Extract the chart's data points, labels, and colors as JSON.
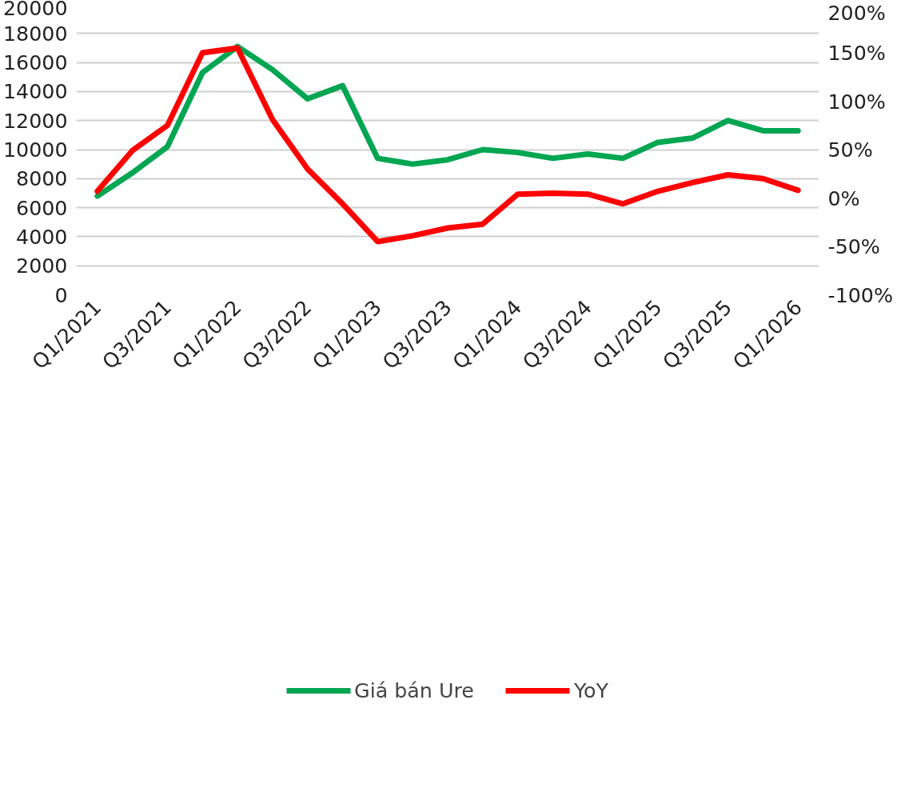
{
  "chart_data": {
    "type": "line",
    "categories": [
      "Q1/2021",
      null,
      "Q3/2021",
      null,
      "Q1/2022",
      null,
      "Q3/2022",
      null,
      "Q1/2023",
      null,
      "Q3/2023",
      null,
      "Q1/2024",
      null,
      "Q3/2024",
      null,
      "Q1/2025",
      null,
      "Q3/2025",
      null,
      "Q1/2026"
    ],
    "series": [
      {
        "name": "Giá bán Ure",
        "color": "#00a651",
        "values": [
          6800,
          8400,
          10200,
          15300,
          17100,
          15500,
          13500,
          14400,
          9400,
          9000,
          9300,
          10000,
          9800,
          9400,
          9700,
          9400,
          10500,
          10800,
          12000,
          11300,
          11300
        ]
      },
      {
        "name": "YoY",
        "color": "#ff0000",
        "axis": "y2",
        "values": [
          7,
          49,
          75,
          150,
          155,
          81,
          30,
          -6,
          -45,
          -39,
          -31,
          -27,
          4,
          5,
          4,
          -6,
          7,
          16,
          24,
          20,
          8
        ]
      }
    ],
    "ylim": [
      0,
      20000
    ],
    "yticks": [
      0,
      2000,
      4000,
      6000,
      8000,
      10000,
      12000,
      14000,
      16000,
      18000,
      20000
    ],
    "y2lim": [
      -100,
      200
    ],
    "y2ticks": [
      {
        "value": -100,
        "label": "-100%"
      },
      {
        "value": -50,
        "label": "-50%"
      },
      {
        "value": 0,
        "label": "0%"
      },
      {
        "value": 50,
        "label": "50%"
      },
      {
        "value": 100,
        "label": "100%"
      },
      {
        "value": 150,
        "label": "150%"
      },
      {
        "value": 200,
        "label": "200%"
      }
    ],
    "grid": "y",
    "legend": "bottom",
    "line_style": "solid",
    "marker": "none"
  }
}
